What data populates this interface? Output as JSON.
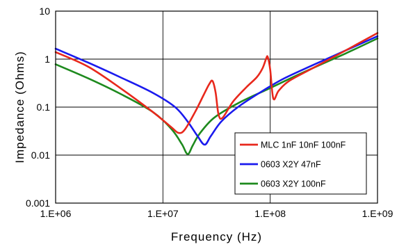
{
  "chart_data": {
    "type": "line",
    "title": "",
    "xlabel": "Frequency (Hz)",
    "ylabel": "Impedance (Ohms)",
    "x_scale": "log",
    "y_scale": "log",
    "xlim": [
      1000000,
      1000000000
    ],
    "ylim": [
      0.001,
      10
    ],
    "x_ticks": [
      1000000,
      10000000,
      100000000,
      1000000000
    ],
    "x_tick_labels": [
      "1.E+06",
      "1.E+07",
      "1.E+08",
      "1.E+09"
    ],
    "y_ticks": [
      0.001,
      0.01,
      0.1,
      1,
      10
    ],
    "y_tick_labels": [
      "0.001",
      "0.01",
      "0.1",
      "1",
      "10"
    ],
    "grid": true,
    "legend_position": "bottom-right",
    "series": [
      {
        "name": "MLC 1nF 10nF 100nF",
        "color": "#e8281c",
        "x": [
          1000000,
          2000000,
          4000000,
          8000000,
          12000000,
          14000000,
          16000000,
          20000000,
          24000000,
          27000000,
          29000000,
          31000000,
          33000000,
          36000000,
          45000000,
          60000000,
          75000000,
          85000000,
          92000000,
          95000000,
          100000000,
          107000000,
          120000000,
          150000000,
          250000000,
          500000000,
          1000000000
        ],
        "y": [
          1.4,
          0.7,
          0.25,
          0.08,
          0.038,
          0.029,
          0.034,
          0.08,
          0.18,
          0.3,
          0.35,
          0.2,
          0.07,
          0.06,
          0.13,
          0.26,
          0.42,
          0.65,
          1.05,
          1.1,
          0.6,
          0.15,
          0.22,
          0.35,
          0.65,
          1.5,
          3.5
        ]
      },
      {
        "name": "0603 X2Y 47nF",
        "color": "#1a1aee",
        "x": [
          1000000,
          2000000,
          4000000,
          8000000,
          13000000,
          17000000,
          21000000,
          24500000,
          28000000,
          35000000,
          50000000,
          80000000,
          130000000,
          250000000,
          500000000,
          1000000000
        ],
        "y": [
          1.65,
          0.85,
          0.42,
          0.2,
          0.1,
          0.05,
          0.025,
          0.0165,
          0.025,
          0.05,
          0.1,
          0.2,
          0.38,
          0.75,
          1.5,
          3.0
        ]
      },
      {
        "name": "0603 X2Y 100nF",
        "color": "#1e8a1e",
        "x": [
          1000000,
          2000000,
          4000000,
          8000000,
          12000000,
          15000000,
          17000000,
          19000000,
          22000000,
          30000000,
          50000000,
          100000000,
          200000000,
          500000000,
          1000000000
        ],
        "y": [
          0.78,
          0.4,
          0.19,
          0.08,
          0.035,
          0.017,
          0.0105,
          0.016,
          0.028,
          0.06,
          0.12,
          0.25,
          0.52,
          1.3,
          2.7
        ]
      }
    ]
  }
}
